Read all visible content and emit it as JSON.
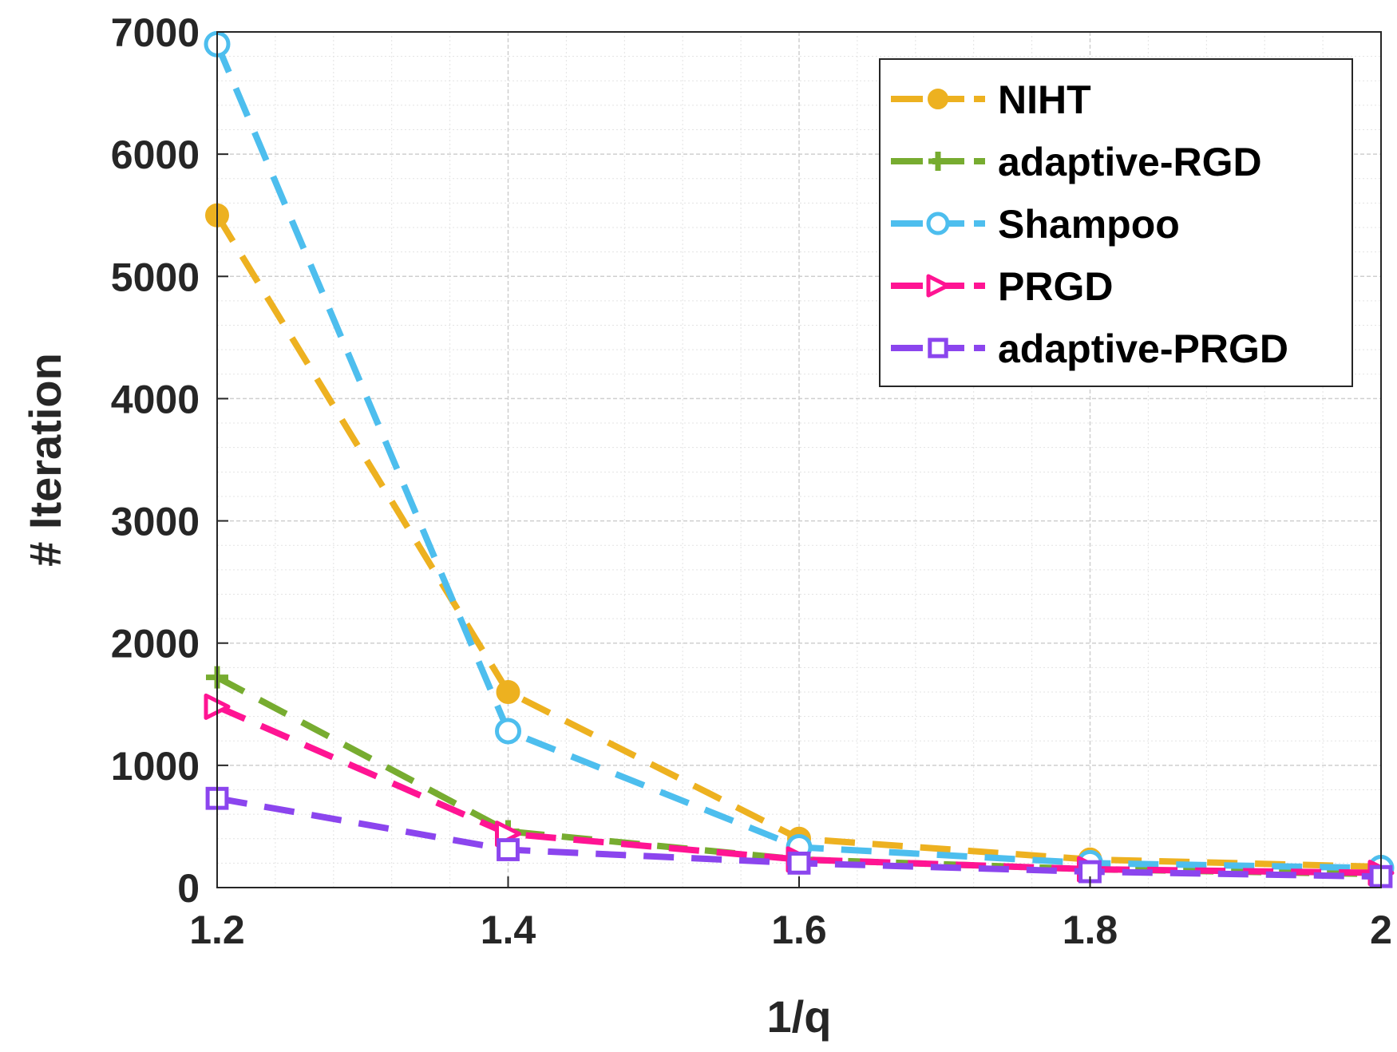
{
  "chart_data": {
    "type": "line",
    "title": "",
    "xlabel": "1/q",
    "ylabel": "# Iteration",
    "x": [
      1.2,
      1.4,
      1.6,
      1.8,
      2.0
    ],
    "xlim": [
      1.2,
      2.0
    ],
    "ylim": [
      0,
      7000
    ],
    "xticks": [
      1.2,
      1.4,
      1.6,
      1.8,
      2.0
    ],
    "xtick_labels": [
      "1.2",
      "1.4",
      "1.6",
      "1.8",
      "2"
    ],
    "yticks": [
      0,
      1000,
      2000,
      3000,
      4000,
      5000,
      6000,
      7000
    ],
    "ytick_labels": [
      "0",
      "1000",
      "2000",
      "3000",
      "4000",
      "5000",
      "6000",
      "7000"
    ],
    "grid": true,
    "minor_grid": true,
    "legend_position": "top-right",
    "series": [
      {
        "name": "NIHT",
        "values": [
          5500,
          1600,
          400,
          230,
          170
        ],
        "color": "#EDB120",
        "marker": "circle-filled"
      },
      {
        "name": "adaptive-RGD",
        "values": [
          1720,
          460,
          230,
          150,
          110
        ],
        "color": "#77AC30",
        "marker": "plus"
      },
      {
        "name": "Shampoo",
        "values": [
          6900,
          1280,
          330,
          200,
          160
        ],
        "color": "#4DBEEE",
        "marker": "circle-open"
      },
      {
        "name": "PRGD",
        "values": [
          1480,
          440,
          230,
          150,
          120
        ],
        "color": "#FF1493",
        "marker": "triangle-right-open"
      },
      {
        "name": "adaptive-PRGD",
        "values": [
          730,
          310,
          200,
          130,
          90
        ],
        "color": "#8B45EE",
        "marker": "square-open"
      }
    ]
  }
}
